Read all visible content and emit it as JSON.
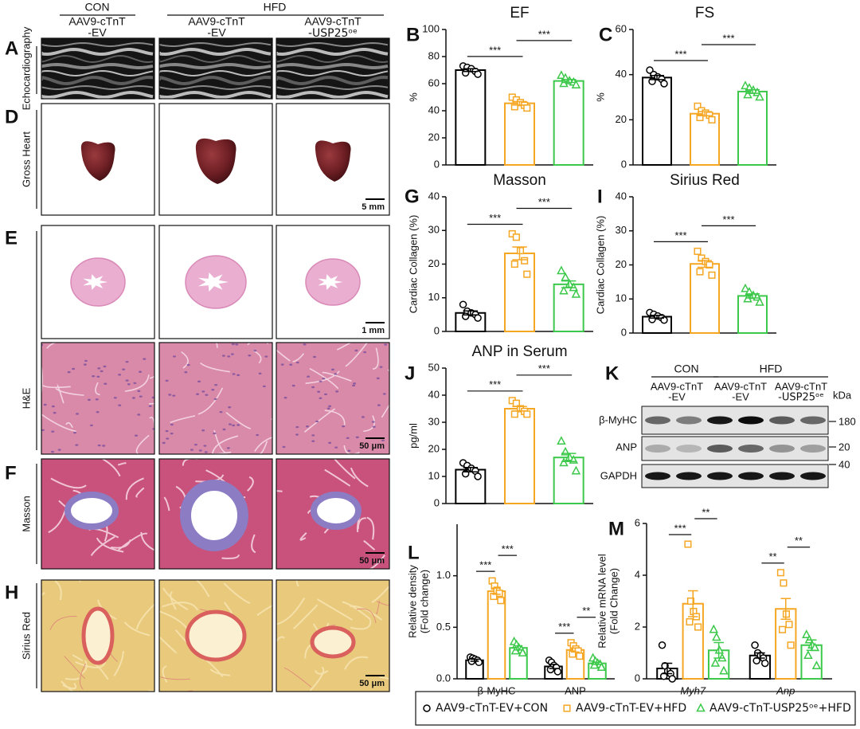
{
  "figure": {
    "column_groups": [
      "CON",
      "HFD"
    ],
    "column_headers": [
      [
        "AAV9-cTnT",
        "-EV"
      ],
      [
        "AAV9-cTnT",
        "-EV"
      ],
      [
        "AAV9-cTnT",
        "-USP25ᵒᵉ"
      ]
    ],
    "rows": [
      {
        "letter": "A",
        "label": "Echocardiography"
      },
      {
        "letter": "D",
        "label": "Gross Heart",
        "scale_bars": [
          "5 mm"
        ]
      },
      {
        "letter": "E",
        "label": "H&E",
        "scale_bars": [
          "1 mm",
          "50 μm"
        ]
      },
      {
        "letter": "F",
        "label": "Masson",
        "scale_bars": [
          "50 μm"
        ]
      },
      {
        "letter": "H",
        "label": "Sirius Red",
        "scale_bars": [
          "50 μm"
        ]
      }
    ]
  },
  "chart_data": [
    {
      "panel": "B",
      "type": "bar",
      "title": "EF",
      "ylabel": "%",
      "ylim": [
        0,
        100
      ],
      "yticks": [
        0,
        20,
        40,
        60,
        80,
        100
      ],
      "values": [
        70,
        45.5,
        62
      ],
      "errors": [
        1.0,
        1.3,
        1.1
      ],
      "points": [
        [
          73,
          72,
          71,
          69,
          68,
          67
        ],
        [
          50,
          48,
          46,
          44,
          43,
          42
        ],
        [
          66,
          64,
          62,
          61,
          60,
          59
        ]
      ],
      "significance": [
        "***",
        "***"
      ]
    },
    {
      "panel": "C",
      "type": "bar",
      "title": "FS",
      "ylabel": "%",
      "ylim": [
        0,
        60
      ],
      "yticks": [
        0,
        20,
        40,
        60
      ],
      "values": [
        38.7,
        22.7,
        32.5
      ],
      "errors": [
        0.9,
        0.9,
        0.8
      ],
      "points": [
        [
          42,
          40,
          39,
          38,
          37,
          36
        ],
        [
          26,
          24,
          23,
          22,
          21,
          20
        ],
        [
          35,
          34,
          33,
          32,
          31,
          30
        ]
      ],
      "significance": [
        "***",
        "***"
      ]
    },
    {
      "panel": "G",
      "type": "bar",
      "title": "Masson",
      "ylabel": "Cardiac Collagen (%)",
      "ylim": [
        0,
        40
      ],
      "yticks": [
        0,
        10,
        20,
        30,
        40
      ],
      "values": [
        5.5,
        23.2,
        14
      ],
      "errors": [
        0.6,
        1.9,
        1.0
      ],
      "points": [
        [
          8,
          6,
          5.5,
          5,
          4.5,
          4
        ],
        [
          29,
          28,
          24,
          21,
          20,
          17
        ],
        [
          18,
          16,
          14,
          13,
          12,
          11
        ]
      ],
      "significance": [
        "***",
        "***"
      ]
    },
    {
      "panel": "I",
      "type": "bar",
      "title": "Sirius Red",
      "ylabel": "Cardiac Collagen (%)",
      "ylim": [
        0,
        40
      ],
      "yticks": [
        0,
        10,
        20,
        30,
        40
      ],
      "values": [
        4.8,
        20.3,
        10.9
      ],
      "errors": [
        0.4,
        1.0,
        0.6
      ],
      "points": [
        [
          6,
          5.5,
          5,
          4.5,
          4,
          3.8
        ],
        [
          24,
          22,
          21,
          20,
          18,
          17
        ],
        [
          13,
          12,
          11,
          10.5,
          10,
          9
        ]
      ],
      "significance": [
        "***",
        "***"
      ]
    },
    {
      "panel": "J",
      "type": "bar",
      "title": "ANP in Serum",
      "ylabel": "pg/ml",
      "ylim": [
        0,
        50
      ],
      "yticks": [
        0,
        10,
        20,
        30,
        40,
        50
      ],
      "values": [
        12.5,
        35,
        17
      ],
      "errors": [
        0.8,
        0.8,
        1.5
      ],
      "points": [
        [
          15,
          14,
          13,
          12,
          11,
          10
        ],
        [
          38,
          37,
          35,
          34,
          33,
          33
        ],
        [
          23,
          19,
          17,
          16,
          15,
          12
        ]
      ],
      "significance": [
        "***",
        "***"
      ]
    },
    {
      "panel": "L",
      "type": "bar",
      "ylabel": [
        "Relative density",
        "(Fold change)"
      ],
      "ylim": [
        0,
        1.5
      ],
      "yticks": [
        {
          "value": 0,
          "label": "0.0"
        },
        {
          "value": 0.5,
          "label": "0.5"
        },
        {
          "value": 1,
          "label": "1.0"
        }
      ],
      "categories": [
        "β-MyHC",
        "ANP"
      ],
      "series": [
        {
          "values": [
            0.18,
            0.12
          ],
          "errors": [
            0.01,
            0.02
          ],
          "points": [
            [
              0.21,
              0.2,
              0.19,
              0.18,
              0.17,
              0.16
            ],
            [
              0.18,
              0.16,
              0.13,
              0.11,
              0.09,
              0.07
            ]
          ]
        },
        {
          "values": [
            0.85,
            0.28
          ],
          "errors": [
            0.03,
            0.02
          ],
          "points": [
            [
              0.95,
              0.9,
              0.86,
              0.83,
              0.8,
              0.76
            ],
            [
              0.35,
              0.32,
              0.29,
              0.27,
              0.24,
              0.22
            ]
          ]
        },
        {
          "values": [
            0.3,
            0.15
          ],
          "errors": [
            0.02,
            0.01
          ],
          "points": [
            [
              0.36,
              0.33,
              0.3,
              0.28,
              0.27,
              0.25
            ],
            [
              0.2,
              0.17,
              0.15,
              0.14,
              0.13,
              0.11
            ]
          ]
        }
      ],
      "significance": [
        [
          "***",
          "***"
        ],
        [
          "***",
          "**"
        ]
      ]
    },
    {
      "panel": "M",
      "type": "bar",
      "ylabel": [
        "Relative mRNA level",
        "(Fold Change)"
      ],
      "ylim": [
        0,
        6
      ],
      "yticks": [
        0,
        2,
        4,
        6
      ],
      "categories": [
        "Myh7",
        "Anp"
      ],
      "series": [
        {
          "values": [
            0.4,
            0.9
          ],
          "errors": [
            0.2,
            0.1
          ],
          "points": [
            [
              1.3,
              0.5,
              0.3,
              0.2,
              0.1,
              0.0
            ],
            [
              1.3,
              1.0,
              0.9,
              0.8,
              0.7,
              0.6
            ]
          ]
        },
        {
          "values": [
            2.9,
            2.7
          ],
          "errors": [
            0.5,
            0.4
          ],
          "points": [
            [
              5.2,
              3.0,
              2.6,
              2.4,
              2.2,
              2.0
            ],
            [
              4.1,
              3.7,
              2.5,
              2.1,
              1.9,
              1.3
            ]
          ]
        },
        {
          "values": [
            1.1,
            1.3
          ],
          "errors": [
            0.3,
            0.2
          ],
          "points": [
            [
              1.9,
              1.6,
              1.1,
              0.8,
              0.6,
              0.3
            ],
            [
              1.7,
              1.5,
              1.3,
              1.2,
              0.9,
              0.5
            ]
          ]
        }
      ],
      "significance": [
        [
          "***",
          "**"
        ],
        [
          "**",
          "**"
        ]
      ]
    }
  ],
  "blot": {
    "letter": "K",
    "groups": [
      "CON",
      "HFD"
    ],
    "headers": [
      [
        "AAV9-cTnT",
        "-EV"
      ],
      [
        "AAV9-cTnT",
        "-EV"
      ],
      [
        "AAV9-cTnT",
        "-USP25ᵒᵉ"
      ]
    ],
    "unit": "kDa",
    "rows": [
      {
        "label": "β-MyHC",
        "mw": 180
      },
      {
        "label": "ANP",
        "mw": 20
      },
      {
        "label": "GAPDH",
        "mw": 40
      }
    ]
  },
  "legend": [
    {
      "name": "AAV9-cTnT-EV+CON",
      "color": "#000000",
      "marker": "circle"
    },
    {
      "name": "AAV9-cTnT-EV+HFD",
      "color": "#f5a623",
      "marker": "square"
    },
    {
      "name": "AAV9-cTnT-USP25ᵒᵉ+HFD",
      "color": "#3cc84a",
      "marker": "triangle"
    }
  ]
}
